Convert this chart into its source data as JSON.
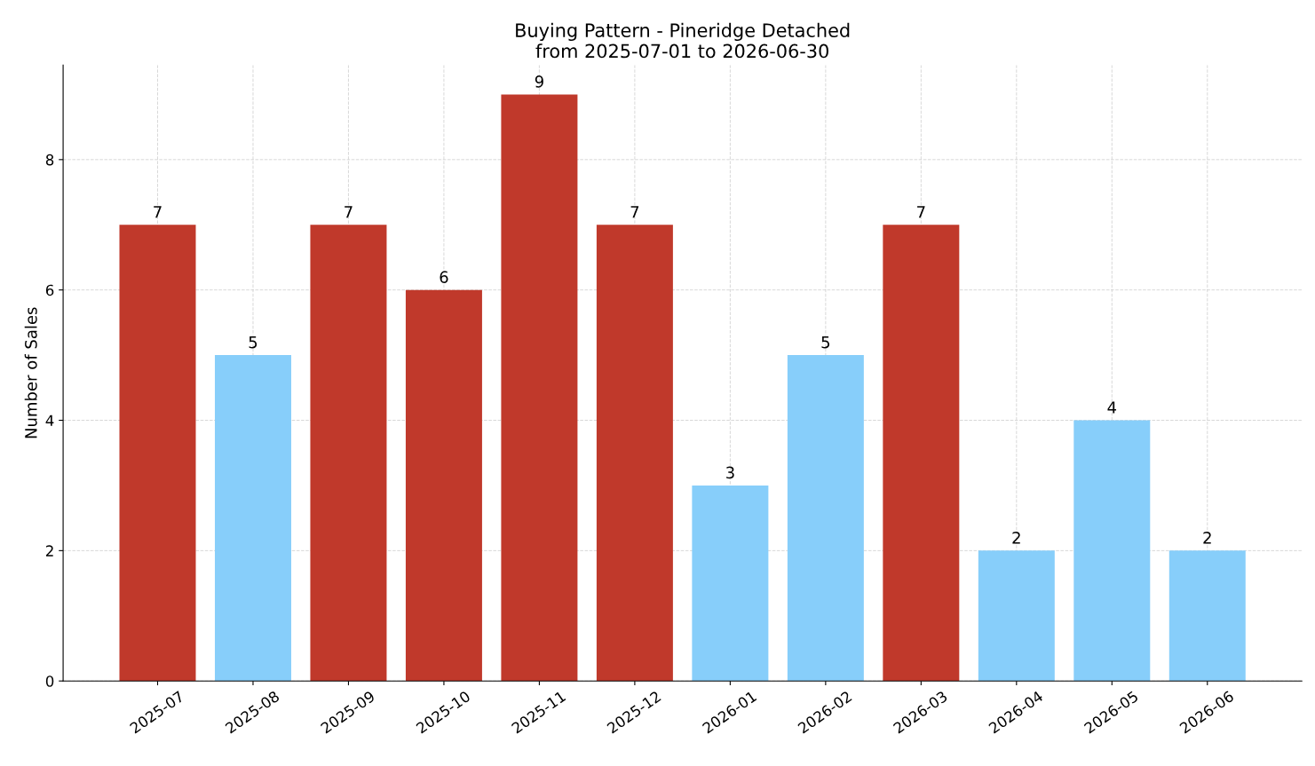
{
  "chart_data": {
    "type": "bar",
    "title": "Buying Pattern - Pineridge Detached\nfrom 2025-07-01 to 2026-06-30",
    "ylabel": "Number of Sales",
    "categories": [
      "2025-07",
      "2025-08",
      "2025-09",
      "2025-10",
      "2025-11",
      "2025-12",
      "2026-01",
      "2026-02",
      "2026-03",
      "2026-04",
      "2026-05",
      "2026-06"
    ],
    "values": [
      7,
      5,
      7,
      6,
      9,
      7,
      3,
      5,
      7,
      2,
      4,
      2
    ],
    "colors": [
      "#c0392b",
      "#87cefa",
      "#c0392b",
      "#c0392b",
      "#c0392b",
      "#c0392b",
      "#87cefa",
      "#87cefa",
      "#c0392b",
      "#87cefa",
      "#87cefa",
      "#87cefa"
    ],
    "ylim": [
      0,
      9.45
    ],
    "yticks": [
      0,
      2,
      4,
      6,
      8
    ],
    "grid": true,
    "data_labels": true,
    "legend": false
  }
}
